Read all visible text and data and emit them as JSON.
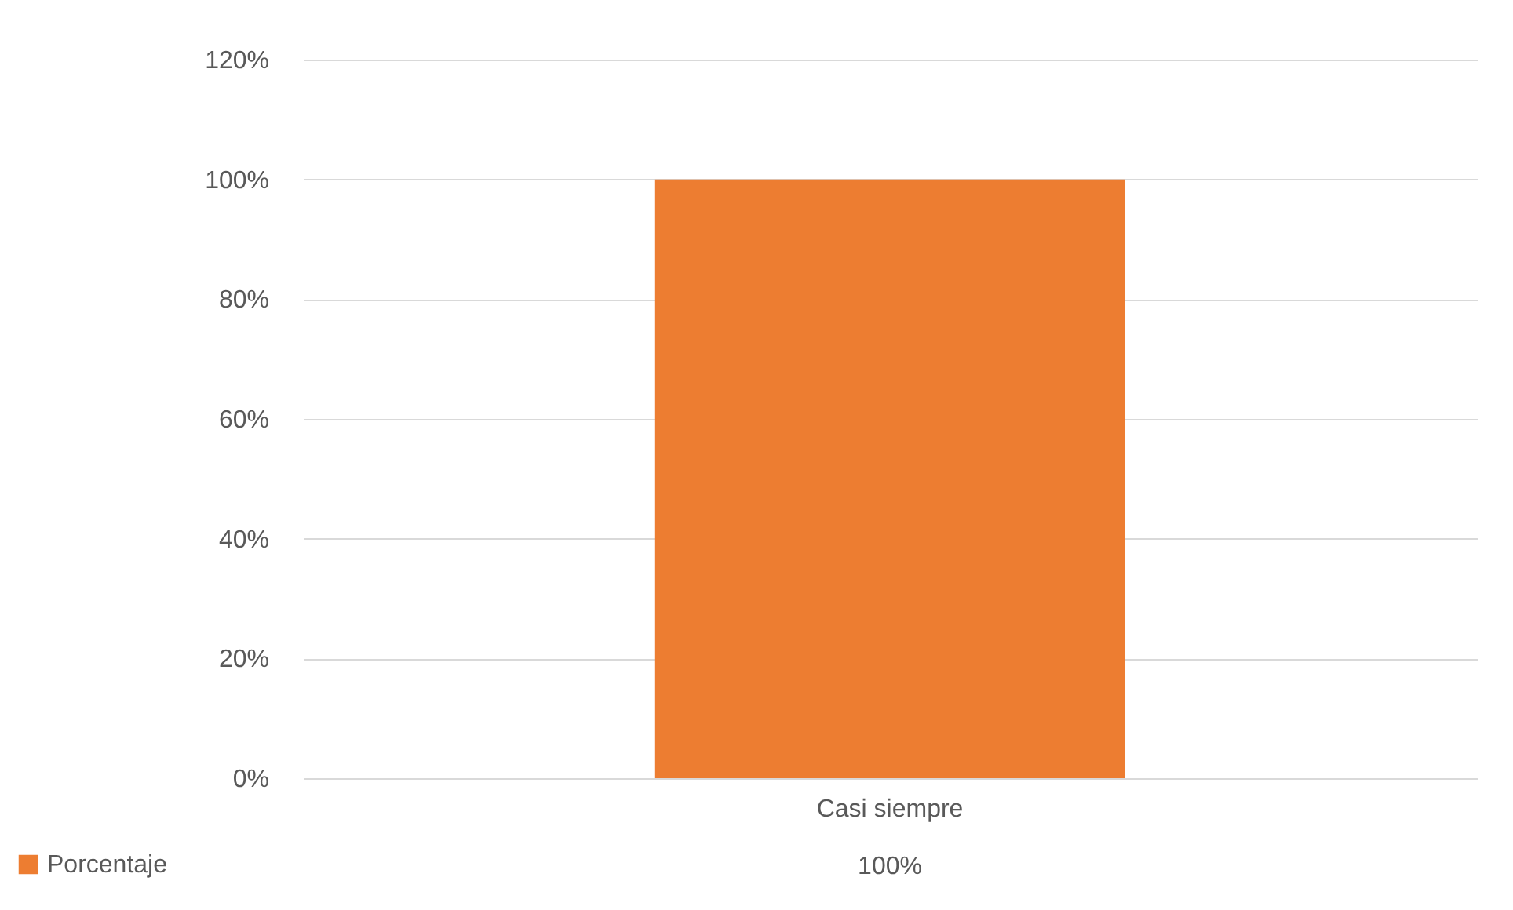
{
  "chart_data": {
    "type": "bar",
    "categories": [
      "Casi siempre"
    ],
    "series": [
      {
        "name": "Porcentaje",
        "color": "#ed7d31",
        "values": [
          100
        ],
        "value_labels": [
          "100%"
        ]
      }
    ],
    "ylim": [
      0,
      120
    ],
    "yticks": [
      {
        "value": 0,
        "label": "0%"
      },
      {
        "value": 20,
        "label": "20%"
      },
      {
        "value": 40,
        "label": "40%"
      },
      {
        "value": 60,
        "label": "60%"
      },
      {
        "value": 80,
        "label": "80%"
      },
      {
        "value": 100,
        "label": "100%"
      },
      {
        "value": 120,
        "label": "120%"
      }
    ],
    "grid": "y",
    "legend": "bottom left"
  }
}
